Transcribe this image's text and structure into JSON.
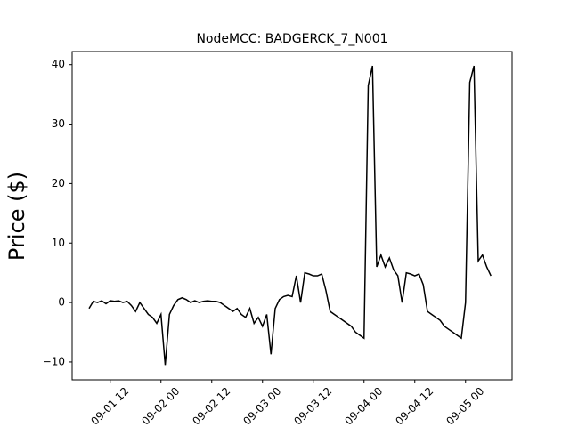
{
  "chart_data": {
    "type": "line",
    "title": "NodeMCC: BADGERCK_7_N001",
    "y_label": "Price ($)",
    "color": "#000000",
    "x": [
      "09-01 07",
      "09-01 08",
      "09-01 09",
      "09-01 10",
      "09-01 11",
      "09-01 12",
      "09-01 13",
      "09-01 14",
      "09-01 15",
      "09-01 16",
      "09-01 17",
      "09-01 18",
      "09-01 19",
      "09-01 20",
      "09-01 21",
      "09-01 22",
      "09-01 23",
      "09-02 00",
      "09-02 01",
      "09-02 02",
      "09-02 03",
      "09-02 04",
      "09-02 05",
      "09-02 06",
      "09-02 07",
      "09-02 08",
      "09-02 09",
      "09-02 10",
      "09-02 11",
      "09-02 12",
      "09-02 13",
      "09-02 14",
      "09-02 15",
      "09-02 16",
      "09-02 17",
      "09-02 18",
      "09-02 19",
      "09-02 20",
      "09-02 21",
      "09-02 22",
      "09-02 23",
      "09-03 00",
      "09-03 01",
      "09-03 02",
      "09-03 03",
      "09-03 04",
      "09-03 05",
      "09-03 06",
      "09-03 07",
      "09-03 08",
      "09-03 09",
      "09-03 10",
      "09-03 11",
      "09-03 12",
      "09-03 13",
      "09-03 14",
      "09-03 15",
      "09-03 16",
      "09-03 17",
      "09-03 18",
      "09-03 19",
      "09-03 20",
      "09-03 21",
      "09-03 22",
      "09-03 23",
      "09-04 00",
      "09-04 01",
      "09-04 02",
      "09-04 03",
      "09-04 04",
      "09-04 05",
      "09-04 06",
      "09-04 07",
      "09-04 08",
      "09-04 09",
      "09-04 10",
      "09-04 11",
      "09-04 12",
      "09-04 13",
      "09-04 14",
      "09-04 15",
      "09-04 16",
      "09-04 17",
      "09-04 18",
      "09-04 19",
      "09-04 20",
      "09-04 21",
      "09-04 22",
      "09-04 23",
      "09-05 00",
      "09-05 01",
      "09-05 02",
      "09-05 03",
      "09-05 04",
      "09-05 05",
      "09-05 06"
    ],
    "values": [
      -1,
      0.2,
      0,
      0.3,
      -0.2,
      0.3,
      0.2,
      0.3,
      0,
      0.2,
      -0.5,
      -1.5,
      0,
      -1,
      -2,
      -2.5,
      -3.5,
      -2,
      -10.5,
      -2,
      -0.5,
      0.5,
      0.8,
      0.5,
      0,
      0.3,
      0,
      0.2,
      0.3,
      0.2,
      0.2,
      0,
      -0.5,
      -1,
      -1.5,
      -1,
      -2,
      -2.5,
      -1,
      -3.5,
      -2.5,
      -4,
      -2,
      -8.7,
      -1,
      0.5,
      1,
      1.2,
      1,
      4.5,
      0,
      5,
      4.8,
      4.5,
      4.5,
      4.8,
      2,
      -1.5,
      -2,
      -2.5,
      -3,
      -3.5,
      -4,
      -5,
      -5.5,
      -6,
      36.5,
      39.8,
      6,
      8,
      6,
      7.5,
      5.5,
      4.5,
      0,
      5,
      4.8,
      4.5,
      4.8,
      3,
      -1.5,
      -2,
      -2.5,
      -3,
      -4,
      -4.5,
      -5,
      -5.5,
      -6,
      0,
      37,
      39.8,
      7,
      8,
      6,
      4.5
    ],
    "xlim": [
      "09-01 03",
      "09-05 11"
    ],
    "xticks": [
      "09-01 12",
      "09-02 00",
      "09-02 12",
      "09-03 00",
      "09-03 12",
      "09-04 00",
      "09-04 12",
      "09-05 00"
    ],
    "ylim": [
      -13,
      42.2
    ],
    "yticks": [
      {
        "value": -10,
        "label": "−10"
      },
      0,
      10,
      20,
      30,
      40
    ]
  }
}
